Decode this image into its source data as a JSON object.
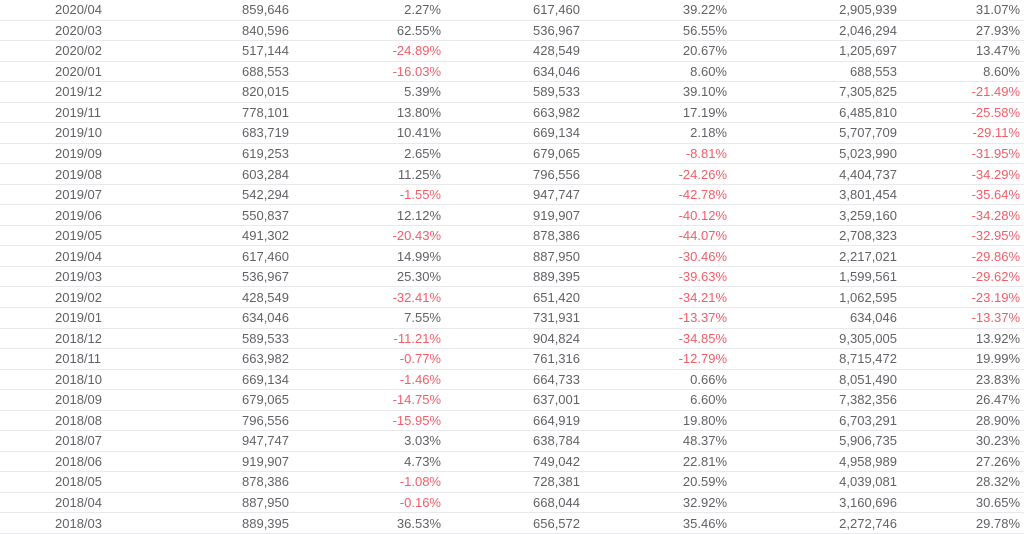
{
  "table": {
    "colors": {
      "text": "#606266",
      "negative": "#f25d68",
      "border": "#e9e9eb",
      "row_background": "#ffffff"
    },
    "columns": [
      "date",
      "monthly-value",
      "mom-change-pct",
      "prior-year-month-value",
      "yoy-change-pct",
      "cumulative-value",
      "cumulative-yoy-change-pct"
    ],
    "rows": [
      [
        "2020/04",
        "859,646",
        "2.27%",
        "617,460",
        "39.22%",
        "2,905,939",
        "31.07%"
      ],
      [
        "2020/03",
        "840,596",
        "62.55%",
        "536,967",
        "56.55%",
        "2,046,294",
        "27.93%"
      ],
      [
        "2020/02",
        "517,144",
        "-24.89%",
        "428,549",
        "20.67%",
        "1,205,697",
        "13.47%"
      ],
      [
        "2020/01",
        "688,553",
        "-16.03%",
        "634,046",
        "8.60%",
        "688,553",
        "8.60%"
      ],
      [
        "2019/12",
        "820,015",
        "5.39%",
        "589,533",
        "39.10%",
        "7,305,825",
        "-21.49%"
      ],
      [
        "2019/11",
        "778,101",
        "13.80%",
        "663,982",
        "17.19%",
        "6,485,810",
        "-25.58%"
      ],
      [
        "2019/10",
        "683,719",
        "10.41%",
        "669,134",
        "2.18%",
        "5,707,709",
        "-29.11%"
      ],
      [
        "2019/09",
        "619,253",
        "2.65%",
        "679,065",
        "-8.81%",
        "5,023,990",
        "-31.95%"
      ],
      [
        "2019/08",
        "603,284",
        "11.25%",
        "796,556",
        "-24.26%",
        "4,404,737",
        "-34.29%"
      ],
      [
        "2019/07",
        "542,294",
        "-1.55%",
        "947,747",
        "-42.78%",
        "3,801,454",
        "-35.64%"
      ],
      [
        "2019/06",
        "550,837",
        "12.12%",
        "919,907",
        "-40.12%",
        "3,259,160",
        "-34.28%"
      ],
      [
        "2019/05",
        "491,302",
        "-20.43%",
        "878,386",
        "-44.07%",
        "2,708,323",
        "-32.95%"
      ],
      [
        "2019/04",
        "617,460",
        "14.99%",
        "887,950",
        "-30.46%",
        "2,217,021",
        "-29.86%"
      ],
      [
        "2019/03",
        "536,967",
        "25.30%",
        "889,395",
        "-39.63%",
        "1,599,561",
        "-29.62%"
      ],
      [
        "2019/02",
        "428,549",
        "-32.41%",
        "651,420",
        "-34.21%",
        "1,062,595",
        "-23.19%"
      ],
      [
        "2019/01",
        "634,046",
        "7.55%",
        "731,931",
        "-13.37%",
        "634,046",
        "-13.37%"
      ],
      [
        "2018/12",
        "589,533",
        "-11.21%",
        "904,824",
        "-34.85%",
        "9,305,005",
        "13.92%"
      ],
      [
        "2018/11",
        "663,982",
        "-0.77%",
        "761,316",
        "-12.79%",
        "8,715,472",
        "19.99%"
      ],
      [
        "2018/10",
        "669,134",
        "-1.46%",
        "664,733",
        "0.66%",
        "8,051,490",
        "23.83%"
      ],
      [
        "2018/09",
        "679,065",
        "-14.75%",
        "637,001",
        "6.60%",
        "7,382,356",
        "26.47%"
      ],
      [
        "2018/08",
        "796,556",
        "-15.95%",
        "664,919",
        "19.80%",
        "6,703,291",
        "28.90%"
      ],
      [
        "2018/07",
        "947,747",
        "3.03%",
        "638,784",
        "48.37%",
        "5,906,735",
        "30.23%"
      ],
      [
        "2018/06",
        "919,907",
        "4.73%",
        "749,042",
        "22.81%",
        "4,958,989",
        "27.26%"
      ],
      [
        "2018/05",
        "878,386",
        "-1.08%",
        "728,381",
        "20.59%",
        "4,039,081",
        "28.32%"
      ],
      [
        "2018/04",
        "887,950",
        "-0.16%",
        "668,044",
        "32.92%",
        "3,160,696",
        "30.65%"
      ],
      [
        "2018/03",
        "889,395",
        "36.53%",
        "656,572",
        "35.46%",
        "2,272,746",
        "29.78%"
      ]
    ]
  }
}
